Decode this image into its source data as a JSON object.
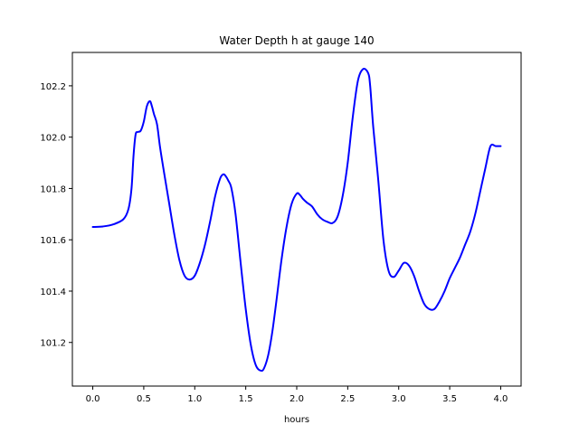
{
  "chart_data": {
    "type": "line",
    "title": "Water Depth h at gauge 140",
    "xlabel": "hours",
    "ylabel": "",
    "xlim": [
      -0.2,
      4.2
    ],
    "ylim": [
      101.03,
      102.33
    ],
    "grid": false,
    "x_ticks": [
      0.0,
      0.5,
      1.0,
      1.5,
      2.0,
      2.5,
      3.0,
      3.5,
      4.0
    ],
    "x_tick_labels": [
      "0.0",
      "0.5",
      "1.0",
      "1.5",
      "2.0",
      "2.5",
      "3.0",
      "3.5",
      "4.0"
    ],
    "y_ticks": [
      101.2,
      101.4,
      101.6,
      101.8,
      102.0,
      102.2
    ],
    "y_tick_labels": [
      "101.2",
      "101.4",
      "101.6",
      "101.8",
      "102.0",
      "102.2"
    ],
    "series": [
      {
        "color": "#0000ff",
        "x": [
          0.0,
          0.1,
          0.2,
          0.3,
          0.35,
          0.38,
          0.4,
          0.42,
          0.44,
          0.47,
          0.5,
          0.53,
          0.56,
          0.58,
          0.6,
          0.63,
          0.66,
          0.7,
          0.75,
          0.8,
          0.85,
          0.9,
          0.95,
          1.0,
          1.05,
          1.1,
          1.15,
          1.2,
          1.25,
          1.28,
          1.3,
          1.33,
          1.36,
          1.4,
          1.45,
          1.5,
          1.55,
          1.6,
          1.65,
          1.68,
          1.72,
          1.76,
          1.8,
          1.85,
          1.9,
          1.95,
          2.0,
          2.03,
          2.06,
          2.1,
          2.15,
          2.2,
          2.25,
          2.3,
          2.35,
          2.4,
          2.45,
          2.5,
          2.55,
          2.6,
          2.65,
          2.7,
          2.72,
          2.75,
          2.8,
          2.85,
          2.9,
          2.95,
          3.0,
          3.05,
          3.1,
          3.15,
          3.2,
          3.25,
          3.3,
          3.35,
          3.4,
          3.45,
          3.5,
          3.55,
          3.6,
          3.65,
          3.7,
          3.75,
          3.8,
          3.85,
          3.9,
          3.95,
          4.0
        ],
        "y": [
          101.65,
          101.652,
          101.66,
          101.68,
          101.72,
          101.8,
          101.93,
          102.01,
          102.02,
          102.025,
          102.06,
          102.12,
          102.14,
          102.12,
          102.09,
          102.05,
          101.96,
          101.86,
          101.74,
          101.62,
          101.52,
          101.46,
          101.445,
          101.46,
          101.51,
          101.58,
          101.67,
          101.77,
          101.84,
          101.855,
          101.85,
          101.83,
          101.8,
          101.7,
          101.51,
          101.33,
          101.19,
          101.11,
          101.09,
          101.1,
          101.15,
          101.24,
          101.36,
          101.52,
          101.65,
          101.74,
          101.78,
          101.775,
          101.76,
          101.745,
          101.73,
          101.7,
          101.68,
          101.67,
          101.665,
          101.69,
          101.77,
          101.9,
          102.08,
          102.22,
          102.265,
          102.25,
          102.2,
          102.04,
          101.83,
          101.6,
          101.48,
          101.455,
          101.48,
          101.51,
          101.5,
          101.46,
          101.4,
          101.35,
          101.33,
          101.33,
          101.36,
          101.4,
          101.45,
          101.49,
          101.53,
          101.58,
          101.63,
          101.7,
          101.79,
          101.88,
          101.965,
          101.965,
          101.965
        ]
      }
    ]
  }
}
